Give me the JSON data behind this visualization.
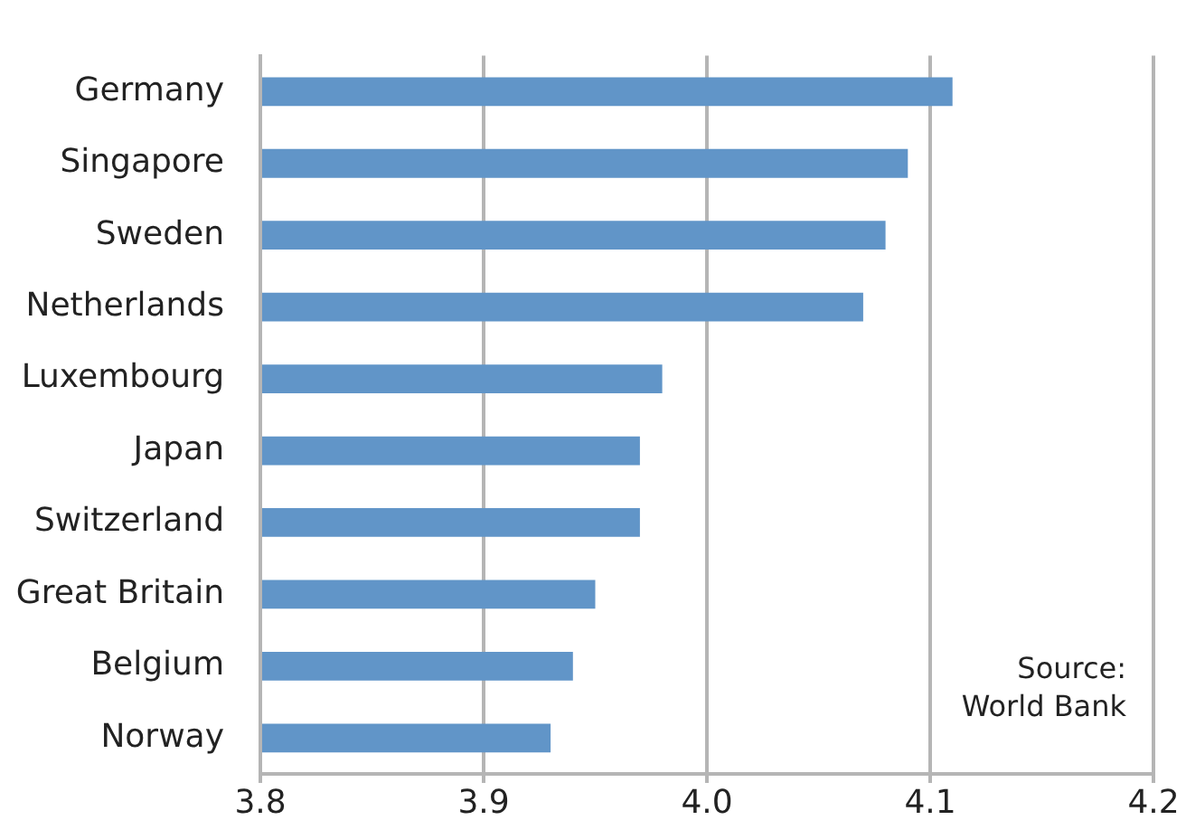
{
  "chart_data": {
    "type": "bar",
    "orientation": "horizontal",
    "categories": [
      "Germany",
      "Singapore",
      "Sweden",
      "Netherlands",
      "Luxembourg",
      "Japan",
      "Switzerland",
      "Great Britain",
      "Belgium",
      "Norway"
    ],
    "values": [
      4.11,
      4.09,
      4.08,
      4.07,
      3.98,
      3.97,
      3.97,
      3.95,
      3.94,
      3.93
    ],
    "color": "#6195c8",
    "xlim": [
      3.8,
      4.2
    ],
    "xticks": [
      3.8,
      3.9,
      {
        "value": 4,
        "label": "4.0"
      },
      4.1,
      4.2
    ],
    "grid": "x",
    "annotations": [
      "Source:\nWorld Bank"
    ]
  }
}
